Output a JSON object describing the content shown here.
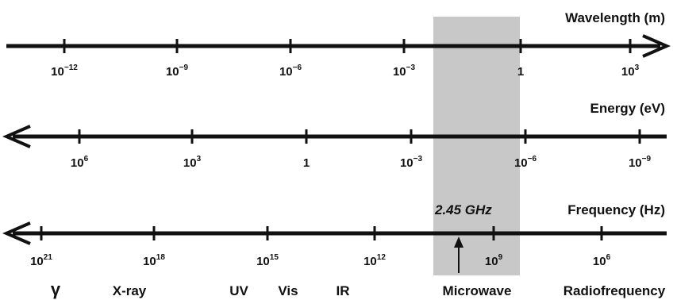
{
  "highlight_color": "#c8c8c8",
  "axes": {
    "wavelength": {
      "title": "Wavelength (m)",
      "direction": "right",
      "ticks": [
        {
          "base": "10",
          "exp": "−12"
        },
        {
          "base": "10",
          "exp": "−9"
        },
        {
          "base": "10",
          "exp": "−6"
        },
        {
          "base": "10",
          "exp": "−3"
        },
        {
          "base": "1",
          "exp": ""
        },
        {
          "base": "10",
          "exp": "3"
        }
      ]
    },
    "energy": {
      "title": "Energy (eV)",
      "direction": "left",
      "ticks": [
        {
          "base": "10",
          "exp": "6"
        },
        {
          "base": "10",
          "exp": "3"
        },
        {
          "base": "1",
          "exp": ""
        },
        {
          "base": "10",
          "exp": "−3"
        },
        {
          "base": "10",
          "exp": "−6"
        },
        {
          "base": "10",
          "exp": "−9"
        }
      ]
    },
    "frequency": {
      "title": "Frequency (Hz)",
      "direction": "left",
      "ticks": [
        {
          "base": "10",
          "exp": "21"
        },
        {
          "base": "10",
          "exp": "18"
        },
        {
          "base": "10",
          "exp": "15"
        },
        {
          "base": "10",
          "exp": "12"
        },
        {
          "base": "10",
          "exp": "9"
        },
        {
          "base": "10",
          "exp": "6"
        }
      ]
    }
  },
  "annotation": "2.45 GHz",
  "regions": [
    "γ",
    "X-ray",
    "UV",
    "Vis",
    "IR",
    "Microwave",
    "Radiofrequency"
  ]
}
